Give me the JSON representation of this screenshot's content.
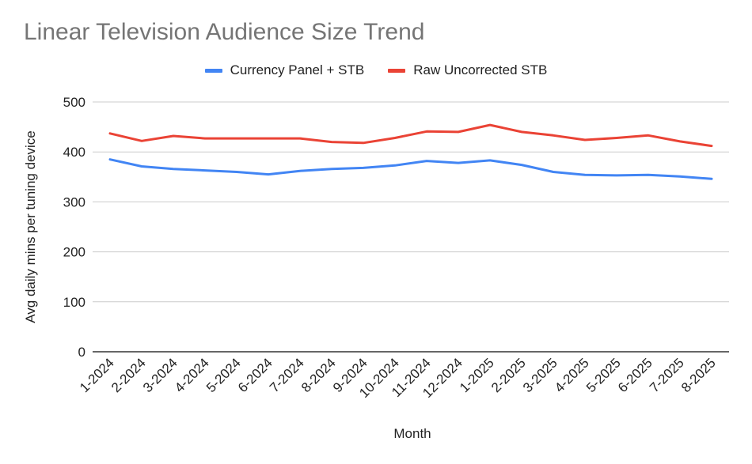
{
  "chart_data": {
    "type": "line",
    "title": "Linear Television Audience Size Trend",
    "xlabel": "Month",
    "ylabel": "Avg daily mins per tuning device",
    "ylim": [
      0,
      500
    ],
    "yticks": [
      0,
      100,
      200,
      300,
      400,
      500
    ],
    "grid": true,
    "legend_position": "top-center",
    "categories": [
      "1-2024",
      "2-2024",
      "3-2024",
      "4-2024",
      "5-2024",
      "6-2024",
      "7-2024",
      "8-2024",
      "9-2024",
      "10-2024",
      "11-2024",
      "12-2024",
      "1-2025",
      "2-2025",
      "3-2025",
      "4-2025",
      "5-2025",
      "6-2025",
      "7-2025",
      "8-2025"
    ],
    "series": [
      {
        "name": "Currency Panel + STB",
        "color": "#4285f4",
        "values": [
          385,
          371,
          366,
          363,
          360,
          355,
          362,
          366,
          368,
          373,
          382,
          378,
          383,
          374,
          360,
          354,
          353,
          354,
          351,
          346
        ]
      },
      {
        "name": "Raw Uncorrected STB",
        "color": "#ea4335",
        "values": [
          437,
          422,
          432,
          427,
          427,
          427,
          427,
          420,
          418,
          428,
          441,
          440,
          454,
          440,
          433,
          424,
          428,
          433,
          421,
          412
        ]
      }
    ]
  }
}
